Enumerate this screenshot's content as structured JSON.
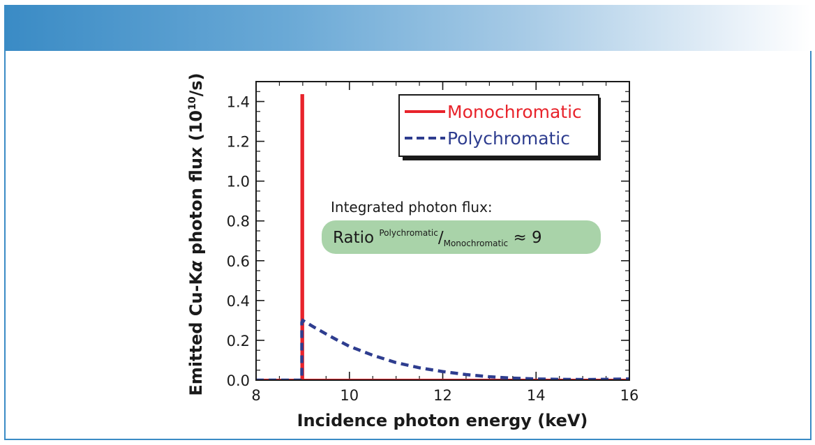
{
  "colors": {
    "monochromatic": "#e8232b",
    "polychromatic": "#2e3d8f",
    "note_box": "#a9d3a9",
    "banner": "#3a8bc5"
  },
  "chart_data": {
    "type": "line",
    "xlabel": "Incidence photon energy (keV)",
    "ylabel_prefix": "Emitted Cu-K",
    "ylabel_alpha": "α",
    "ylabel_mid": " photon flux (10",
    "ylabel_exp": "10",
    "ylabel_suffix": "/s)",
    "xlim": [
      8,
      16
    ],
    "ylim": [
      0,
      1.5
    ],
    "x_ticks": [
      8,
      10,
      12,
      14,
      16
    ],
    "x_tick_labels": [
      "8",
      "10",
      "12",
      "14",
      "16"
    ],
    "y_ticks": [
      0.0,
      0.2,
      0.4,
      0.6,
      0.8,
      1.0,
      1.2,
      1.4
    ],
    "y_tick_labels": [
      "0.0",
      "0.2",
      "0.4",
      "0.6",
      "0.8",
      "1.0",
      "1.2",
      "1.4"
    ],
    "series": [
      {
        "name": "Monochromatic",
        "style": "solid",
        "x": [
          8.0,
          8.98,
          8.98,
          9.0,
          9.0,
          16.0
        ],
        "y": [
          0.0,
          0.0,
          1.43,
          1.43,
          0.0,
          0.0
        ]
      },
      {
        "name": "Polychromatic",
        "style": "dashed",
        "x": [
          8.0,
          8.98,
          8.98,
          9.0,
          9.25,
          9.5,
          9.75,
          10.0,
          10.5,
          11.0,
          11.5,
          12.0,
          12.5,
          13.0,
          13.5,
          14.0,
          14.5,
          15.0,
          15.5,
          16.0
        ],
        "y": [
          0.0,
          0.0,
          0.29,
          0.3,
          0.265,
          0.232,
          0.2,
          0.17,
          0.125,
          0.088,
          0.062,
          0.043,
          0.028,
          0.017,
          0.01,
          0.006,
          0.004,
          0.003,
          0.004,
          0.006
        ]
      }
    ],
    "annotations": {
      "note_line1": "Integrated photon flux:",
      "ratio_word": "Ratio ",
      "ratio_numerator": "Polychromatic",
      "ratio_slash": "/",
      "ratio_denominator": "Monochromatic",
      "ratio_value": " ≈ 9"
    },
    "legend_position": "top-right"
  }
}
